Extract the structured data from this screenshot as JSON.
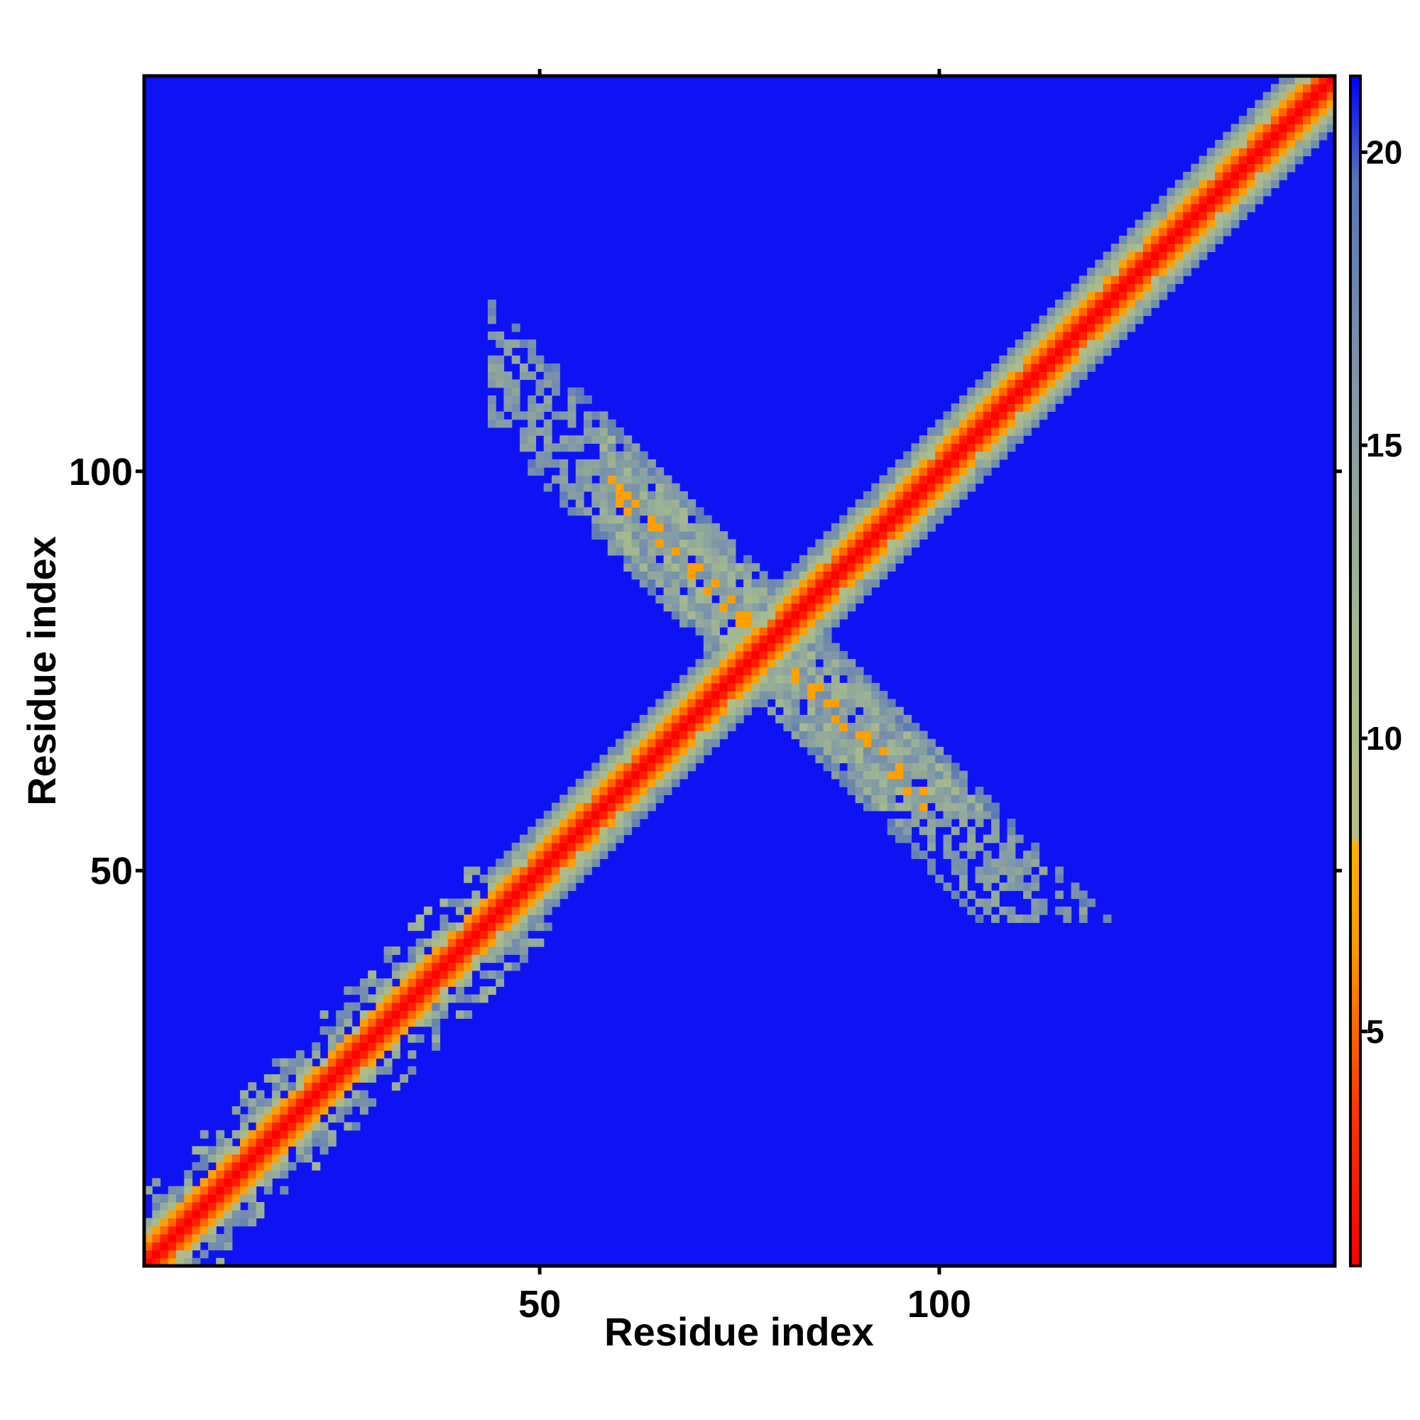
{
  "chart_data": {
    "type": "heatmap",
    "title": "",
    "xlabel": "Residue index",
    "ylabel": "Residue index",
    "n_residues": 149,
    "xlim": [
      1,
      149
    ],
    "ylim": [
      1,
      149
    ],
    "x_ticks": [
      50,
      100
    ],
    "x_ticks_top": [
      50,
      100
    ],
    "y_ticks": [
      50,
      100
    ],
    "colorbar": {
      "ticks": [
        5,
        10,
        15,
        20
      ],
      "range": [
        1,
        21.3
      ],
      "stops": [
        {
          "value": 1,
          "color": "#ff0000"
        },
        {
          "value": 3.5,
          "color": "#ff3000"
        },
        {
          "value": 6.5,
          "color": "#ff9900"
        },
        {
          "value": 8.2,
          "color": "#ffb000"
        },
        {
          "value": 8.3,
          "color": "#b8c080"
        },
        {
          "value": 12,
          "color": "#a2b890"
        },
        {
          "value": 16,
          "color": "#7f97a8"
        },
        {
          "value": 19.5,
          "color": "#5874b8"
        },
        {
          "value": 21.3,
          "color": "#0000ff"
        }
      ]
    },
    "background_value": 21,
    "features": [
      {
        "name": "main diagonal",
        "from": [
          1,
          1
        ],
        "to": [
          149,
          149
        ],
        "core_value": 1
      },
      {
        "name": "antiparallel contacts",
        "from": [
          45,
          110
        ],
        "to": [
          115,
          48
        ],
        "core_value": 7
      }
    ],
    "colors": {
      "background": "#0000ff",
      "frame": "#000000"
    }
  }
}
